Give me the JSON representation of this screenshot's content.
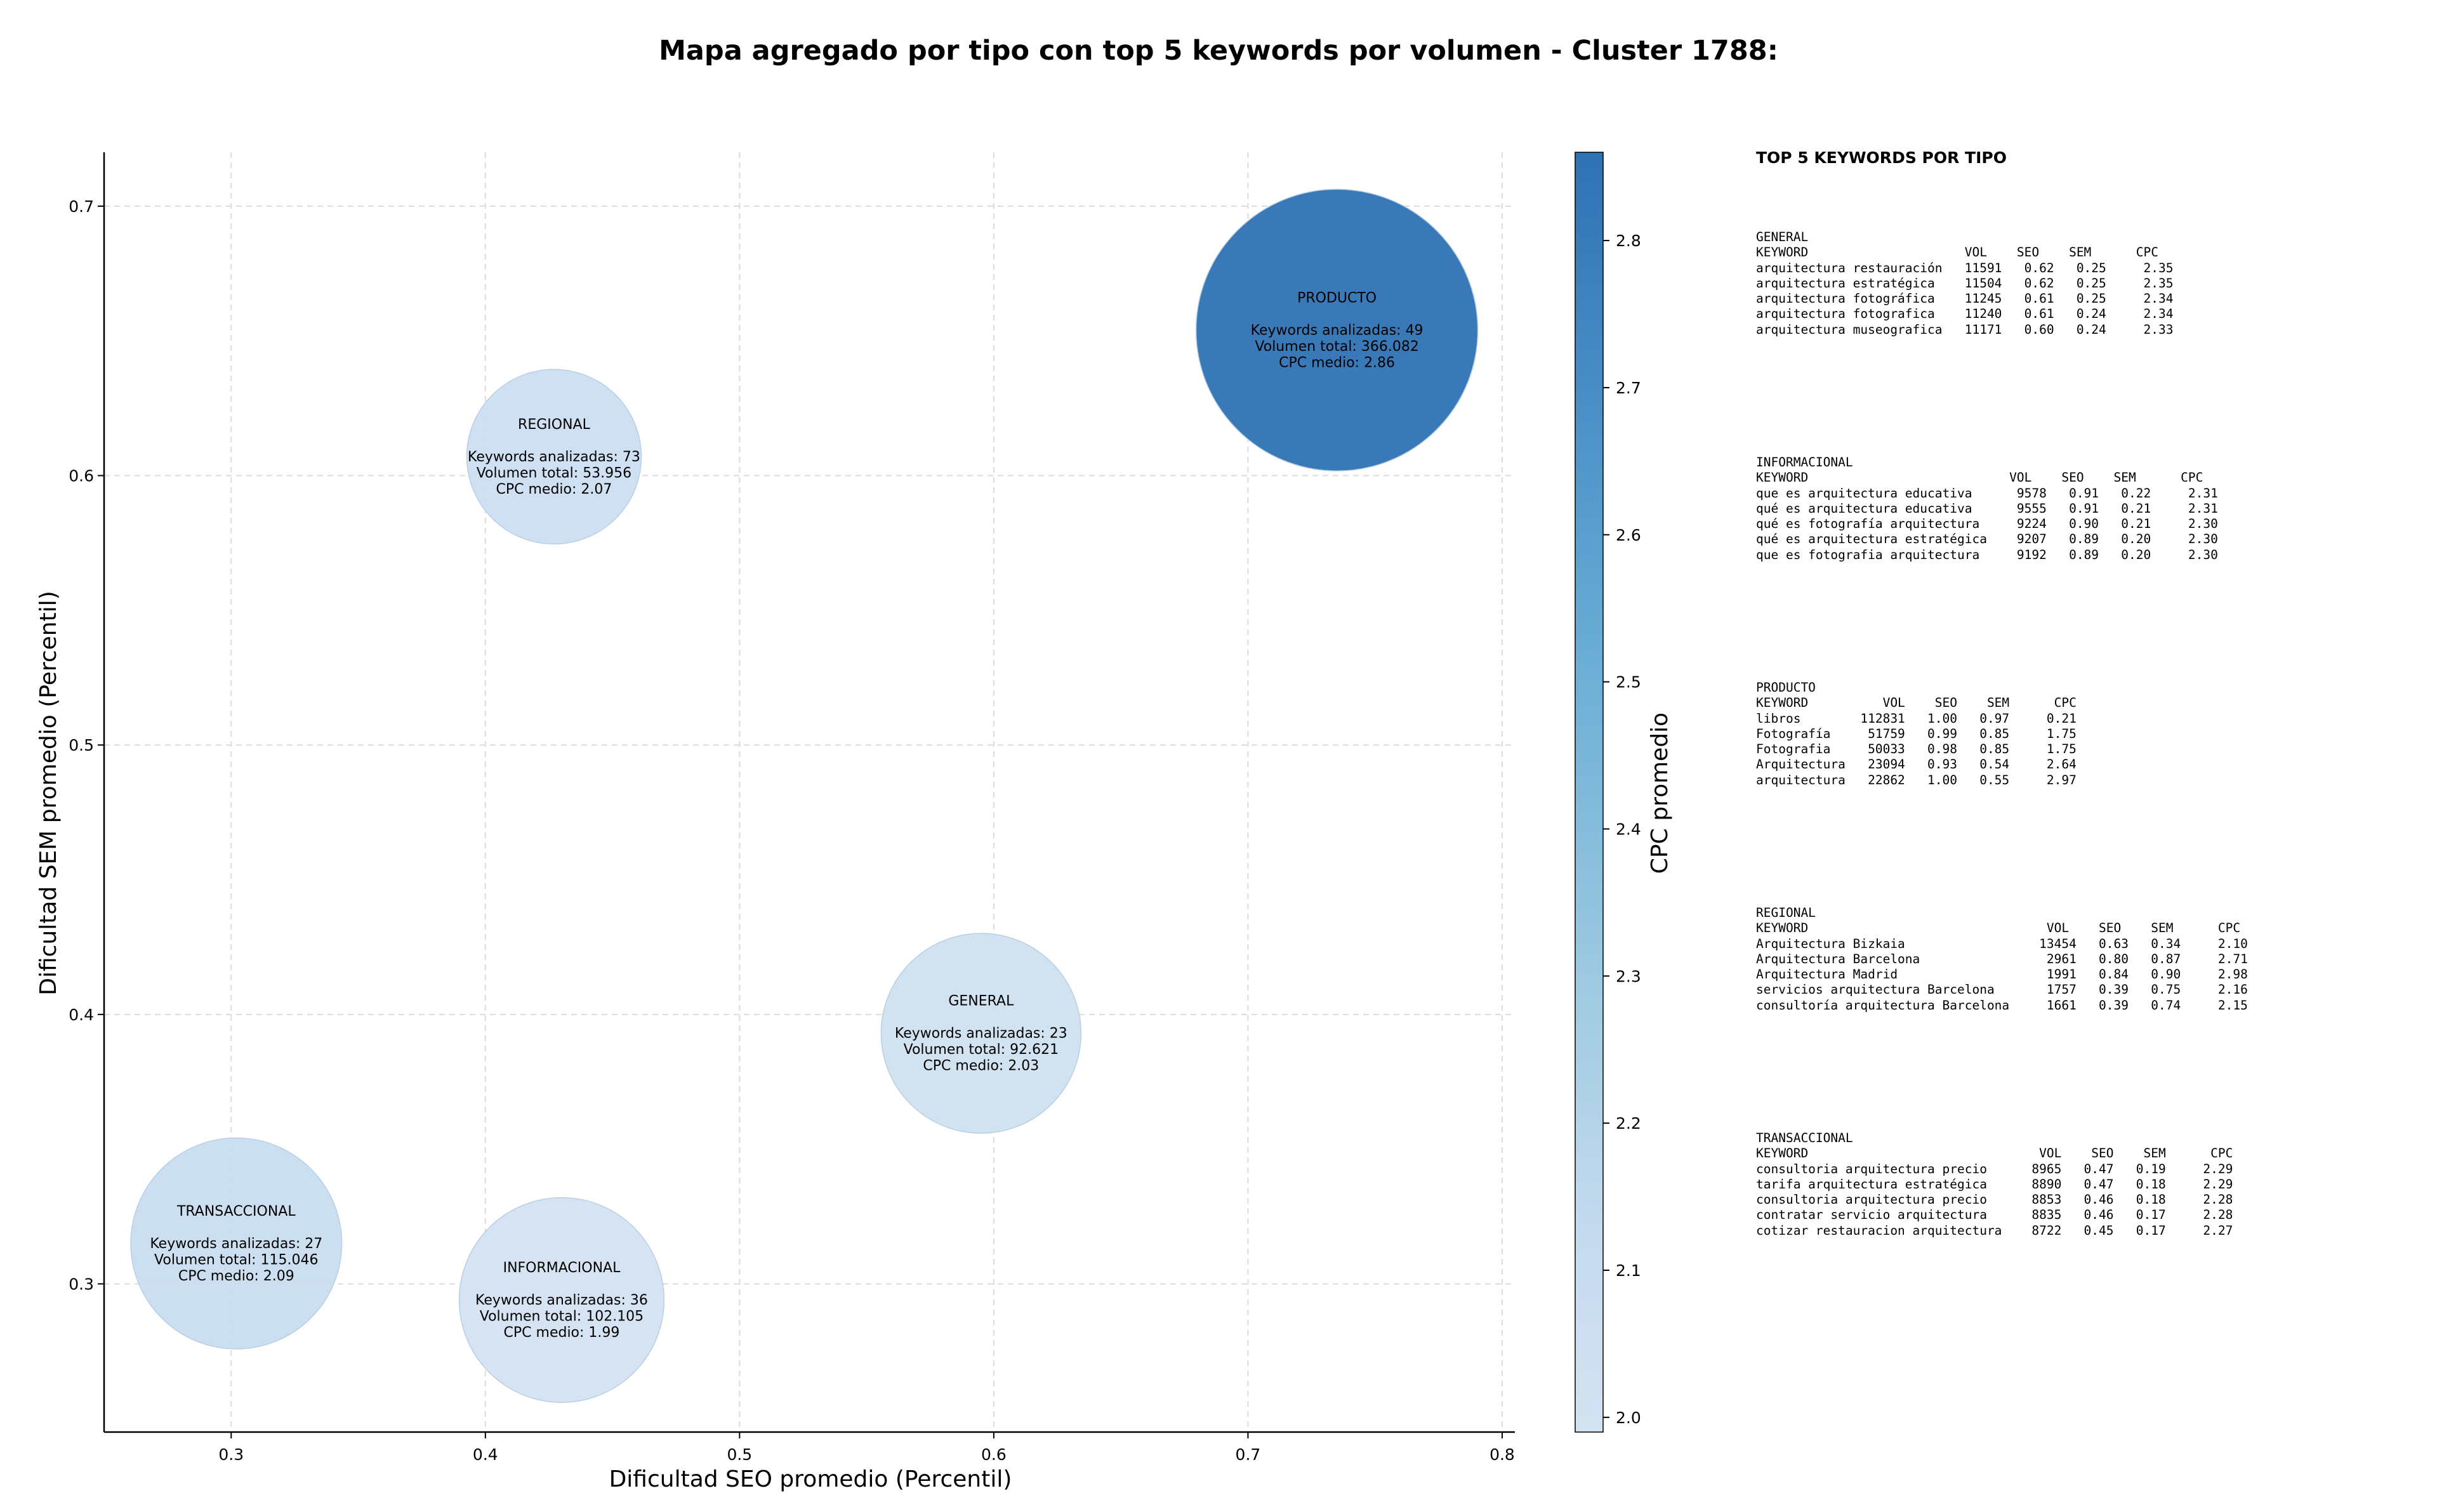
{
  "chart_data": {
    "type": "scatter",
    "subtype": "bubble",
    "title": "Mapa agregado por tipo con top 5 keywords por volumen - Cluster 1788:",
    "xlabel": "Dificultad SEO promedio (Percentil)",
    "ylabel": "Dificultad SEM promedio (Percentil)",
    "xlim": [
      0.25,
      0.805
    ],
    "ylim": [
      0.245,
      0.72
    ],
    "xticks": [
      "0.3",
      "0.4",
      "0.5",
      "0.6",
      "0.7",
      "0.8"
    ],
    "yticks": [
      "0.3",
      "0.4",
      "0.5",
      "0.6",
      "0.7"
    ],
    "grid": true,
    "colorbar": {
      "label": "CPC promedio",
      "min": 1.99,
      "max": 2.86,
      "ticks": [
        "2.0",
        "2.1",
        "2.2",
        "2.3",
        "2.4",
        "2.5",
        "2.6",
        "2.7",
        "2.8"
      ],
      "color_low": "#d3e2f1",
      "color_high": "#2e72b3"
    },
    "points": [
      {
        "name": "GENERAL",
        "x": 0.595,
        "y": 0.393,
        "cpc": 2.03,
        "volume": 92621,
        "label_lines": [
          "GENERAL",
          "",
          "Keywords analizadas: 23",
          "Volumen total: 92.621",
          "CPC medio: 2.03"
        ]
      },
      {
        "name": "INFORMACIONAL",
        "x": 0.43,
        "y": 0.294,
        "cpc": 1.99,
        "volume": 102105,
        "label_lines": [
          "INFORMACIONAL",
          "",
          "Keywords analizadas: 36",
          "Volumen total: 102.105",
          "CPC medio: 1.99"
        ]
      },
      {
        "name": "PRODUCTO",
        "x": 0.735,
        "y": 0.654,
        "cpc": 2.86,
        "volume": 366082,
        "label_lines": [
          "PRODUCTO",
          "",
          "Keywords analizadas: 49",
          "Volumen total: 366.082",
          "CPC medio: 2.86"
        ]
      },
      {
        "name": "REGIONAL",
        "x": 0.427,
        "y": 0.607,
        "cpc": 2.07,
        "volume": 53956,
        "label_lines": [
          "REGIONAL",
          "",
          "Keywords analizadas: 73",
          "Volumen total: 53.956",
          "CPC medio: 2.07"
        ]
      },
      {
        "name": "TRANSACCIONAL",
        "x": 0.302,
        "y": 0.315,
        "cpc": 2.09,
        "volume": 115046,
        "label_lines": [
          "TRANSACCIONAL",
          "",
          "Keywords analizadas: 27",
          "Volumen total: 115.046",
          "CPC medio: 2.09"
        ]
      }
    ],
    "top_keywords": {
      "heading": "TOP 5 KEYWORDS POR TIPO",
      "blocks": [
        {
          "type": "GENERAL",
          "lines": [
            "GENERAL",
            "KEYWORD                     VOL    SEO    SEM      CPC",
            "arquitectura restauración   11591   0.62   0.25     2.35",
            "arquitectura estratégica    11504   0.62   0.25     2.35",
            "arquitectura fotográfica    11245   0.61   0.25     2.34",
            "arquitectura fotografica    11240   0.61   0.24     2.34",
            "arquitectura museografica   11171   0.60   0.24     2.33"
          ]
        },
        {
          "type": "INFORMACIONAL",
          "lines": [
            "INFORMACIONAL",
            "KEYWORD                           VOL    SEO    SEM      CPC",
            "que es arquitectura educativa      9578   0.91   0.22     2.31",
            "qué es arquitectura educativa      9555   0.91   0.21     2.31",
            "qué es fotografía arquitectura     9224   0.90   0.21     2.30",
            "qué es arquitectura estratégica    9207   0.89   0.20     2.30",
            "que es fotografia arquitectura     9192   0.89   0.20     2.30"
          ]
        },
        {
          "type": "PRODUCTO",
          "lines": [
            "PRODUCTO",
            "KEYWORD          VOL    SEO    SEM      CPC",
            "libros        112831   1.00   0.97     0.21",
            "Fotografía     51759   0.99   0.85     1.75",
            "Fotografia     50033   0.98   0.85     1.75",
            "Arquitectura   23094   0.93   0.54     2.64",
            "arquitectura   22862   1.00   0.55     2.97"
          ]
        },
        {
          "type": "REGIONAL",
          "lines": [
            "REGIONAL",
            "KEYWORD                                VOL    SEO    SEM      CPC",
            "Arquitectura Bizkaia                  13454   0.63   0.34     2.10",
            "Arquitectura Barcelona                 2961   0.80   0.87     2.71",
            "Arquitectura Madrid                    1991   0.84   0.90     2.98",
            "servicios arquitectura Barcelona       1757   0.39   0.75     2.16",
            "consultoría arquitectura Barcelona     1661   0.39   0.74     2.15"
          ]
        },
        {
          "type": "TRANSACCIONAL",
          "lines": [
            "TRANSACCIONAL",
            "KEYWORD                               VOL    SEO    SEM      CPC",
            "consultoria arquitectura precio      8965   0.47   0.19     2.29",
            "tarifa arquitectura estratégica      8890   0.47   0.18     2.29",
            "consultoria arquitectura precio      8853   0.46   0.18     2.28",
            "contratar servicio arquitectura      8835   0.46   0.17     2.28",
            "cotizar restauracion arquitectura    8722   0.45   0.17     2.27"
          ]
        }
      ]
    }
  }
}
